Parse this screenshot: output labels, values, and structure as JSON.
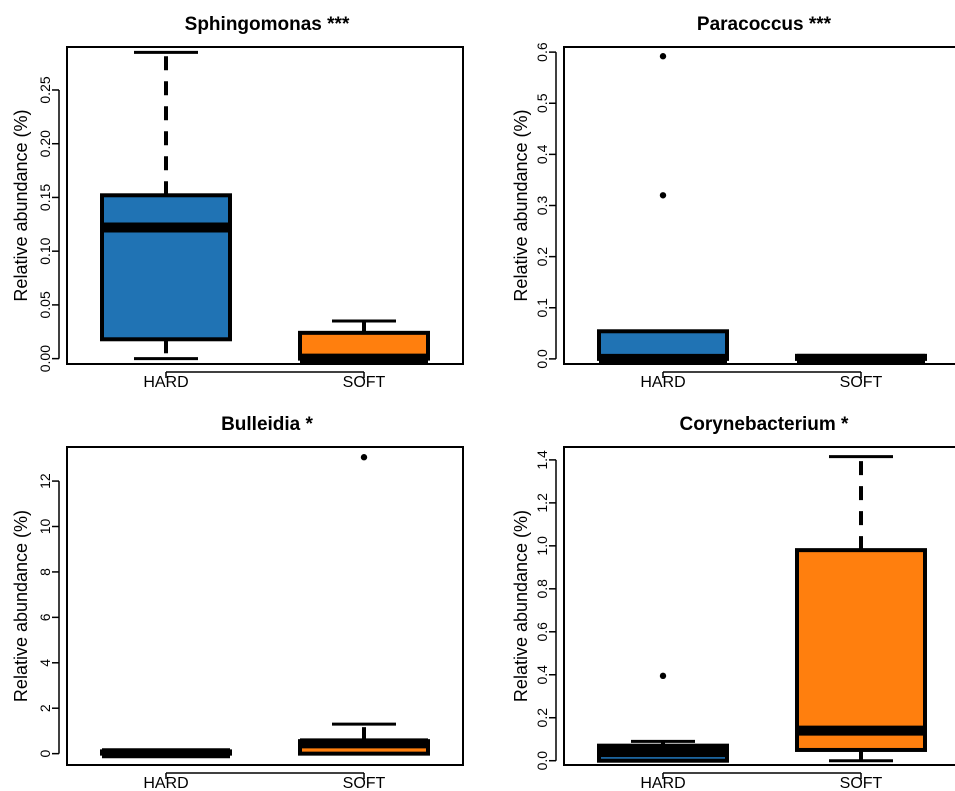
{
  "figure": {
    "colors": {
      "HARD": "#2073b4",
      "SOFT": "#ff7f0e"
    }
  },
  "chart_data": [
    {
      "type": "box",
      "title": "Sphingomonas ***",
      "xlabel": "",
      "ylabel": "Relative abundance (%)",
      "categories": [
        "HARD",
        "SOFT"
      ],
      "ylim": [
        -0.005,
        0.29
      ],
      "yticks": [
        0.0,
        0.05,
        0.1,
        0.15,
        0.2,
        0.25
      ],
      "ytick_labels": [
        "0.00",
        "0.05",
        "0.10",
        "0.15",
        "0.20",
        "0.25"
      ],
      "series": [
        {
          "group": "HARD",
          "whisker_low": 0.0,
          "q1": 0.018,
          "median": 0.122,
          "q3": 0.152,
          "whisker_high": 0.285,
          "outliers": []
        },
        {
          "group": "SOFT",
          "whisker_low": 0.0,
          "q1": 0.0,
          "median": 0.0,
          "q3": 0.024,
          "whisker_high": 0.035,
          "outliers": []
        }
      ]
    },
    {
      "type": "box",
      "title": "Paracoccus ***",
      "xlabel": "",
      "ylabel": "Relative abundance (%)",
      "categories": [
        "HARD",
        "SOFT"
      ],
      "ylim": [
        -0.01,
        0.61
      ],
      "yticks": [
        0.0,
        0.1,
        0.2,
        0.3,
        0.4,
        0.5,
        0.6
      ],
      "ytick_labels": [
        "0.0",
        "0.1",
        "0.2",
        "0.3",
        "0.4",
        "0.5",
        "0.6"
      ],
      "series": [
        {
          "group": "HARD",
          "whisker_low": 0.0,
          "q1": 0.0,
          "median": 0.0,
          "q3": 0.054,
          "whisker_high": 0.054,
          "outliers": [
            0.32,
            0.592
          ]
        },
        {
          "group": "SOFT",
          "whisker_low": 0.0,
          "q1": 0.0,
          "median": 0.0,
          "q3": 0.006,
          "whisker_high": 0.006,
          "outliers": []
        }
      ]
    },
    {
      "type": "box",
      "title": "Bulleidia *",
      "xlabel": "",
      "ylabel": "Relative abundance (%)",
      "categories": [
        "HARD",
        "SOFT"
      ],
      "ylim": [
        -0.5,
        13.5
      ],
      "yticks": [
        0,
        2,
        4,
        6,
        8,
        10,
        12
      ],
      "ytick_labels": [
        "0",
        "2",
        "4",
        "6",
        "8",
        "10",
        "12"
      ],
      "series": [
        {
          "group": "HARD",
          "whisker_low": 0.0,
          "q1": 0.0,
          "median": 0.02,
          "q3": 0.1,
          "whisker_high": 0.15,
          "outliers": []
        },
        {
          "group": "SOFT",
          "whisker_low": 0.0,
          "q1": 0.0,
          "median": 0.45,
          "q3": 0.55,
          "whisker_high": 1.3,
          "outliers": [
            13.05
          ]
        }
      ]
    },
    {
      "type": "box",
      "title": "Corynebacterium *",
      "xlabel": "",
      "ylabel": "Relative abundance (%)",
      "categories": [
        "HARD",
        "SOFT"
      ],
      "ylim": [
        -0.02,
        1.46
      ],
      "yticks": [
        0.0,
        0.2,
        0.4,
        0.6,
        0.8,
        1.0,
        1.2,
        1.4
      ],
      "ytick_labels": [
        "0.0",
        "0.2",
        "0.4",
        "0.6",
        "0.8",
        "1.0",
        "1.2",
        "1.4"
      ],
      "series": [
        {
          "group": "HARD",
          "whisker_low": 0.0,
          "q1": 0.0,
          "median": 0.04,
          "q3": 0.07,
          "whisker_high": 0.09,
          "outliers": [
            0.395
          ]
        },
        {
          "group": "SOFT",
          "whisker_low": 0.0,
          "q1": 0.05,
          "median": 0.14,
          "q3": 0.98,
          "whisker_high": 1.415,
          "outliers": []
        }
      ]
    }
  ]
}
